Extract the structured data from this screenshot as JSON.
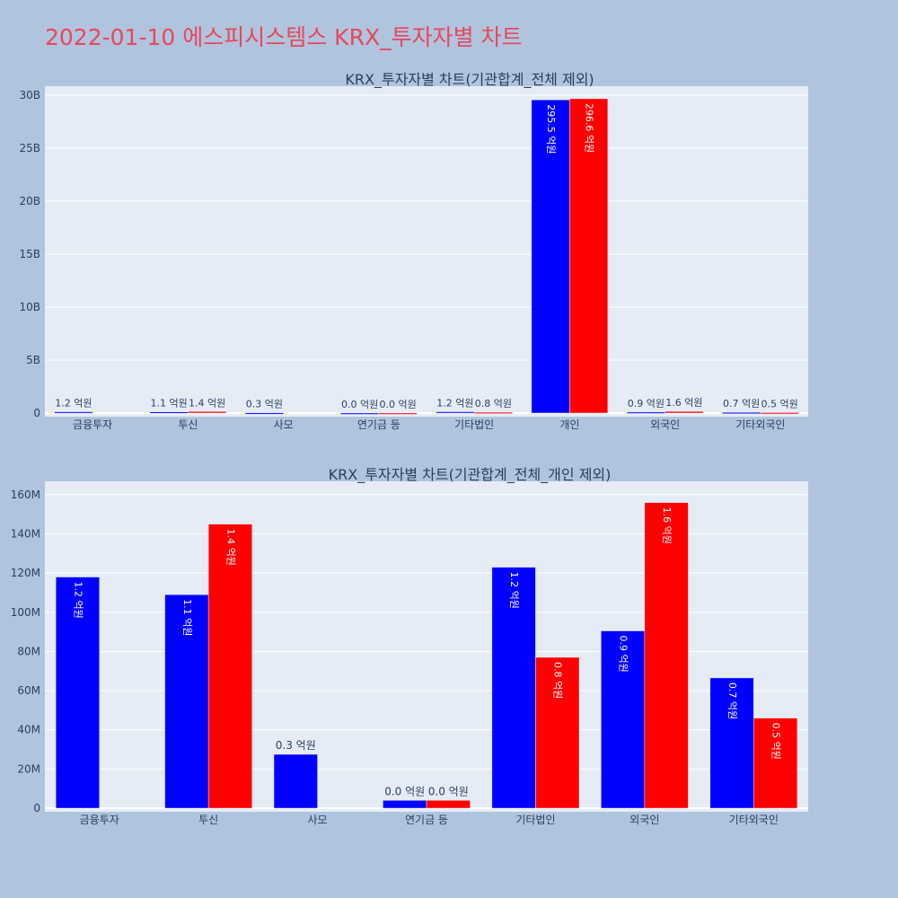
{
  "page_title": "2022-01-10 에스피시스템스 KRX_투자자별 차트",
  "colors": {
    "buy": "#0000ff",
    "sell": "#ff0000",
    "plot_bg": "#e5ecf6",
    "page_bg": "#b0c4de",
    "title": "#e8475b"
  },
  "chart_data": [
    {
      "type": "bar",
      "title": "KRX_투자자별 차트(기관합계_전체 제외)",
      "categories": [
        "금융투자",
        "투신",
        "사모",
        "연기금 등",
        "기타법인",
        "개인",
        "외국인",
        "기타외국인"
      ],
      "ylim": [
        0,
        30500000000
      ],
      "yticks": [
        0,
        5000000000,
        10000000000,
        15000000000,
        20000000000,
        25000000000,
        30000000000
      ],
      "ytick_labels": [
        "0",
        "5B",
        "10B",
        "15B",
        "20B",
        "25B",
        "30B"
      ],
      "grid": true,
      "series": [
        {
          "color": "#0000ff",
          "values": [
            120000000,
            110000000,
            30000000,
            4000000,
            125000000,
            29550000000,
            90000000,
            67000000
          ],
          "labels": [
            "1.2 억원",
            "1.1 억원",
            "0.3 억원",
            "0.0 억원",
            "1.2 억원",
            "295.5 억원",
            "0.9 억원",
            "0.7 억원"
          ]
        },
        {
          "color": "#ff0000",
          "values": [
            0,
            145000000,
            0,
            4000000,
            77000000,
            29660000000,
            156000000,
            46000000
          ],
          "labels": [
            "",
            "1.4 억원",
            "",
            "0.0 억원",
            "0.8 억원",
            "296.6 억원",
            "1.6 억원",
            "0.5 억원"
          ]
        }
      ]
    },
    {
      "type": "bar",
      "title": "KRX_투자자별 차트(기관합계_전체_개인 제외)",
      "categories": [
        "금융투자",
        "투신",
        "사모",
        "연기금 등",
        "기타법인",
        "외국인",
        "기타외국인"
      ],
      "ylim": [
        0,
        165000000
      ],
      "yticks": [
        0,
        20000000,
        40000000,
        60000000,
        80000000,
        100000000,
        120000000,
        140000000,
        160000000
      ],
      "ytick_labels": [
        "0",
        "20M",
        "40M",
        "60M",
        "80M",
        "100M",
        "120M",
        "140M",
        "160M"
      ],
      "grid": true,
      "series": [
        {
          "color": "#0000ff",
          "values": [
            118000000,
            109000000,
            27500000,
            4000000,
            123000000,
            90500000,
            66500000
          ],
          "labels": [
            "1.2 억원",
            "1.1 억원",
            "0.3 억원",
            "0.0 억원",
            "1.2 억원",
            "0.9 억원",
            "0.7 억원"
          ]
        },
        {
          "color": "#ff0000",
          "values": [
            0,
            145000000,
            0,
            4000000,
            77000000,
            156000000,
            46000000
          ],
          "labels": [
            "",
            "1.4 억원",
            "",
            "0.0 억원",
            "0.8 억원",
            "1.6 억원",
            "0.5 억원"
          ]
        }
      ]
    }
  ]
}
